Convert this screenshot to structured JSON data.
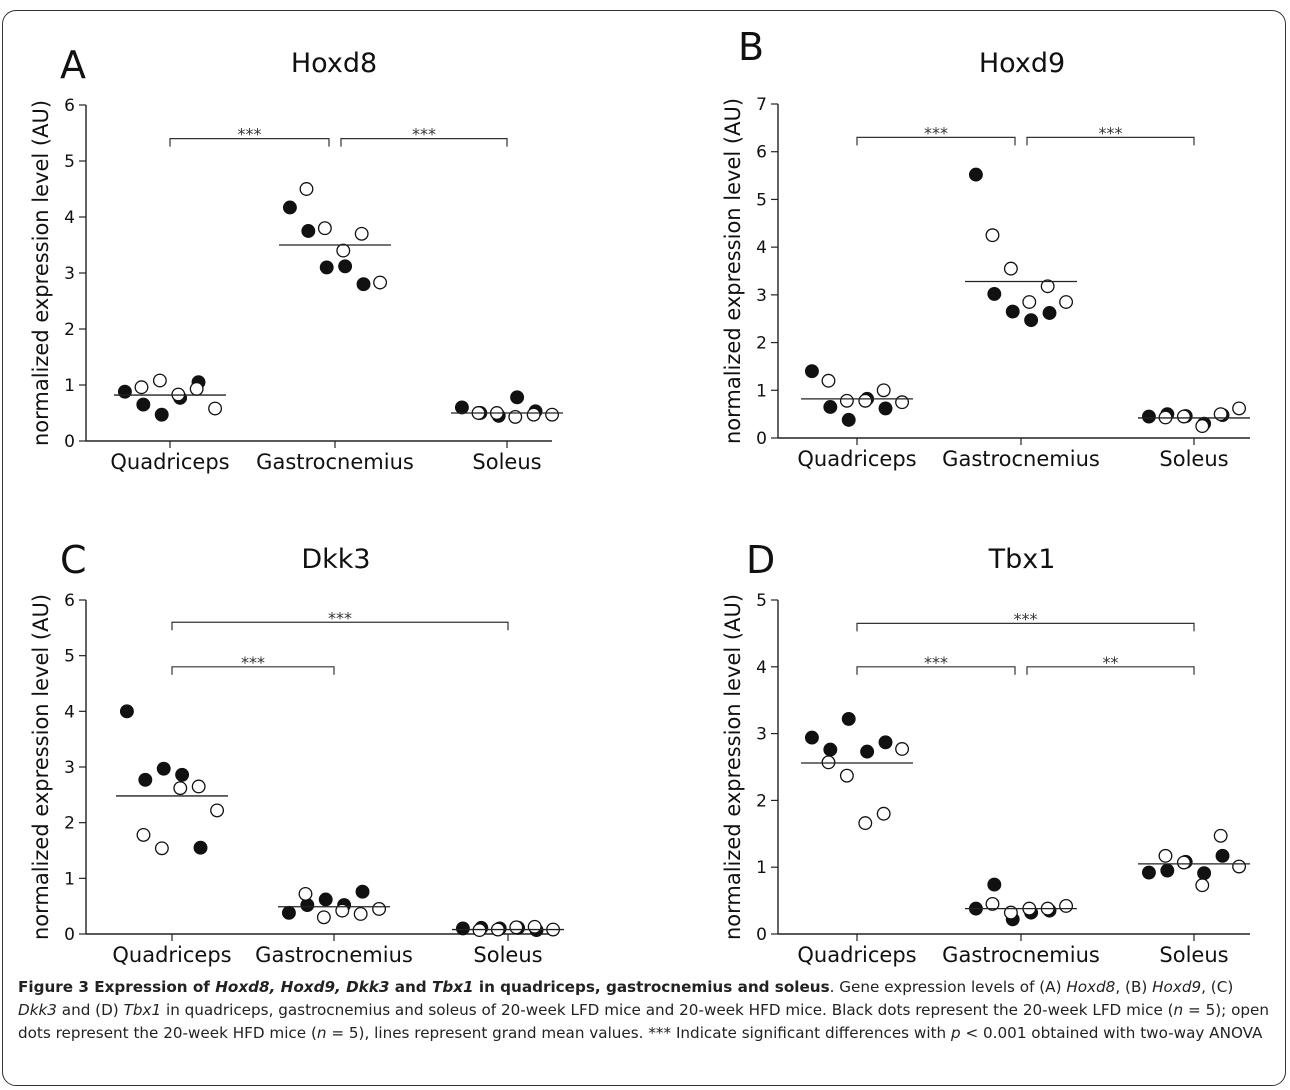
{
  "caption": {
    "fig_label": "Figure 3",
    "title_pre": "Expression of ",
    "title_genes": "Hoxd8, Hoxd9, Dkk3",
    "title_and": " and ",
    "title_gene4": "Tbx1",
    "title_post": " in quadriceps, gastrocnemius and soleus",
    "body_1": ". Gene expression levels of (A) ",
    "g1": "Hoxd8",
    "body_2": ", (B) ",
    "g2": "Hoxd9",
    "body_3": ", (C) ",
    "g3": "Dkk3",
    "body_4": " and (D) ",
    "g4": "Tbx1",
    "body_5": " in quadriceps, gastrocnemius and soleus of 20-week LFD mice and 20-week HFD mice. Black dots represent the 20-week LFD mice (",
    "n1": "n",
    "body_6": " = 5); open dots represent the 20-week HFD mice (",
    "n2": "n",
    "body_7": " = 5), lines represent grand mean values. *** Indicate significant differences with ",
    "p": "p",
    "body_8": " < 0.001 obtained with two-way ANOVA"
  },
  "chart_data": [
    {
      "panel": "A",
      "type": "scatter",
      "title": "Hoxd8",
      "ylabel": "normalized expression level (AU)",
      "categories": [
        "Quadriceps",
        "Gastrocnemius",
        "Soleus"
      ],
      "ylim": [
        0,
        6
      ],
      "yticks": [
        0,
        1,
        2,
        3,
        4,
        5,
        6
      ],
      "series": [
        {
          "fill": "filled",
          "values": [
            [
              0.88,
              0.65,
              0.47,
              0.77,
              1.05
            ],
            [
              4.17,
              3.75,
              3.1,
              3.12,
              2.8
            ],
            [
              0.6,
              0.5,
              0.45,
              0.78,
              0.53
            ]
          ]
        },
        {
          "fill": "open",
          "values": [
            [
              0.96,
              1.08,
              0.83,
              0.93,
              0.58
            ],
            [
              4.5,
              3.8,
              3.4,
              3.7,
              2.83
            ],
            [
              0.5,
              0.5,
              0.43,
              0.47,
              0.47
            ]
          ]
        }
      ],
      "means": [
        0.82,
        3.5,
        0.5
      ],
      "significance": [
        {
          "from": 0,
          "to": 1,
          "label": "***",
          "level": 5.4
        },
        {
          "from": 1,
          "to": 2,
          "label": "***",
          "level": 5.4
        }
      ]
    },
    {
      "panel": "B",
      "type": "scatter",
      "title": "Hoxd9",
      "ylabel": "normalized expression level (AU)",
      "categories": [
        "Quadriceps",
        "Gastrocnemius",
        "Soleus"
      ],
      "ylim": [
        0,
        7
      ],
      "yticks": [
        0,
        1,
        2,
        3,
        4,
        5,
        6,
        7
      ],
      "series": [
        {
          "fill": "filled",
          "values": [
            [
              1.4,
              0.65,
              0.38,
              0.82,
              0.62
            ],
            [
              5.52,
              3.02,
              2.65,
              2.47,
              2.62
            ],
            [
              0.45,
              0.5,
              0.46,
              0.3,
              0.48
            ]
          ]
        },
        {
          "fill": "open",
          "values": [
            [
              1.2,
              0.78,
              0.78,
              1.0,
              0.75
            ],
            [
              4.25,
              3.55,
              2.85,
              3.18,
              2.85
            ],
            [
              0.43,
              0.45,
              0.25,
              0.5,
              0.62
            ]
          ]
        }
      ],
      "means": [
        0.82,
        3.28,
        0.42
      ],
      "significance": [
        {
          "from": 0,
          "to": 1,
          "label": "***",
          "level": 6.3
        },
        {
          "from": 1,
          "to": 2,
          "label": "***",
          "level": 6.3
        }
      ]
    },
    {
      "panel": "C",
      "type": "scatter",
      "title": "Dkk3",
      "ylabel": "normalized expression level (AU)",
      "categories": [
        "Quadriceps",
        "Gastrocnemius",
        "Soleus"
      ],
      "ylim": [
        0,
        6
      ],
      "yticks": [
        0,
        1,
        2,
        3,
        4,
        5,
        6
      ],
      "series": [
        {
          "fill": "filled",
          "values": [
            [
              4.0,
              2.77,
              2.97,
              2.86,
              1.55
            ],
            [
              0.38,
              0.52,
              0.62,
              0.52,
              0.76
            ],
            [
              0.1,
              0.11,
              0.1,
              0.11,
              0.07
            ]
          ]
        },
        {
          "fill": "open",
          "values": [
            [
              1.78,
              1.54,
              2.62,
              2.65,
              2.22
            ],
            [
              0.72,
              0.3,
              0.42,
              0.36,
              0.45
            ],
            [
              0.07,
              0.08,
              0.12,
              0.13,
              0.08
            ]
          ]
        }
      ],
      "means": [
        2.48,
        0.49,
        0.08
      ],
      "significance": [
        {
          "from": 0,
          "to": 1,
          "label": "***",
          "level": 4.8
        },
        {
          "from": 0,
          "to": 2,
          "label": "***",
          "level": 5.6
        }
      ]
    },
    {
      "panel": "D",
      "type": "scatter",
      "title": "Tbx1",
      "ylabel": "normalized expression level (AU)",
      "categories": [
        "Quadriceps",
        "Gastrocnemius",
        "Soleus"
      ],
      "ylim": [
        0,
        5
      ],
      "yticks": [
        0,
        1,
        2,
        3,
        4,
        5
      ],
      "series": [
        {
          "fill": "filled",
          "values": [
            [
              2.94,
              2.76,
              3.22,
              2.73,
              2.87
            ],
            [
              0.38,
              0.74,
              0.22,
              0.32,
              0.35
            ],
            [
              0.92,
              0.95,
              1.08,
              0.91,
              1.17
            ]
          ]
        },
        {
          "fill": "open",
          "values": [
            [
              2.57,
              2.37,
              1.66,
              1.8,
              2.77
            ],
            [
              0.45,
              0.32,
              0.38,
              0.38,
              0.42
            ],
            [
              1.17,
              1.07,
              0.73,
              1.47,
              1.01
            ]
          ]
        }
      ],
      "means": [
        2.56,
        0.38,
        1.05
      ],
      "significance": [
        {
          "from": 0,
          "to": 1,
          "label": "***",
          "level": 4.0
        },
        {
          "from": 1,
          "to": 2,
          "label": "**",
          "level": 4.0
        },
        {
          "from": 0,
          "to": 2,
          "label": "***",
          "level": 4.65
        }
      ]
    }
  ]
}
